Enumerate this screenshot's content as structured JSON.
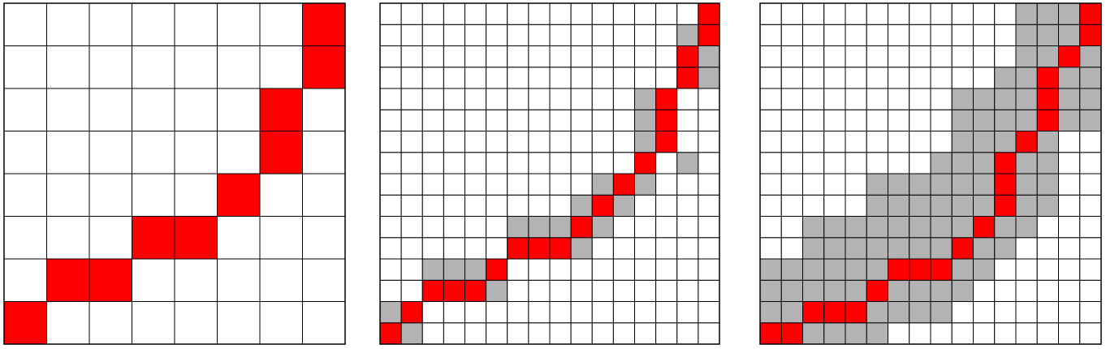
{
  "colors": {
    "path": "#ff0000",
    "window": "#b3b3b3",
    "empty": "#ffffff",
    "grid": "#000000"
  },
  "panels": [
    {
      "size": 8,
      "path": [
        [
          0,
          0
        ],
        [
          1,
          1
        ],
        [
          2,
          1
        ],
        [
          3,
          2
        ],
        [
          4,
          2
        ],
        [
          5,
          3
        ],
        [
          6,
          4
        ],
        [
          6,
          5
        ],
        [
          7,
          6
        ],
        [
          7,
          7
        ]
      ],
      "window": []
    },
    {
      "size": 16,
      "path": [
        [
          0,
          0
        ],
        [
          1,
          1
        ],
        [
          2,
          2
        ],
        [
          3,
          2
        ],
        [
          4,
          2
        ],
        [
          5,
          3
        ],
        [
          6,
          4
        ],
        [
          7,
          4
        ],
        [
          8,
          4
        ],
        [
          9,
          5
        ],
        [
          10,
          6
        ],
        [
          11,
          7
        ],
        [
          12,
          8
        ],
        [
          13,
          9
        ],
        [
          13,
          10
        ],
        [
          13,
          11
        ],
        [
          14,
          12
        ],
        [
          14,
          13
        ],
        [
          15,
          14
        ],
        [
          15,
          15
        ]
      ],
      "window": [
        [
          0,
          1
        ],
        [
          1,
          0
        ],
        [
          2,
          3
        ],
        [
          3,
          3
        ],
        [
          4,
          3
        ],
        [
          5,
          2
        ],
        [
          6,
          5
        ],
        [
          7,
          5
        ],
        [
          8,
          5
        ],
        [
          9,
          4
        ],
        [
          9,
          6
        ],
        [
          10,
          5
        ],
        [
          10,
          7
        ],
        [
          11,
          6
        ],
        [
          12,
          7
        ],
        [
          12,
          9
        ],
        [
          12,
          10
        ],
        [
          12,
          11
        ],
        [
          14,
          8
        ],
        [
          14,
          14
        ],
        [
          15,
          12
        ],
        [
          15,
          13
        ]
      ]
    },
    {
      "size": 16,
      "path": [
        [
          0,
          0
        ],
        [
          1,
          0
        ],
        [
          2,
          1
        ],
        [
          3,
          1
        ],
        [
          4,
          1
        ],
        [
          5,
          2
        ],
        [
          6,
          3
        ],
        [
          7,
          3
        ],
        [
          8,
          3
        ],
        [
          9,
          4
        ],
        [
          10,
          5
        ],
        [
          11,
          6
        ],
        [
          11,
          7
        ],
        [
          11,
          8
        ],
        [
          12,
          9
        ],
        [
          13,
          10
        ],
        [
          13,
          11
        ],
        [
          13,
          12
        ],
        [
          14,
          13
        ],
        [
          15,
          14
        ],
        [
          15,
          15
        ]
      ],
      "window": [
        [
          0,
          1
        ],
        [
          0,
          2
        ],
        [
          0,
          3
        ],
        [
          1,
          1
        ],
        [
          1,
          2
        ],
        [
          1,
          3
        ],
        [
          2,
          0
        ],
        [
          2,
          2
        ],
        [
          2,
          3
        ],
        [
          2,
          4
        ],
        [
          2,
          5
        ],
        [
          3,
          0
        ],
        [
          3,
          2
        ],
        [
          3,
          3
        ],
        [
          3,
          4
        ],
        [
          3,
          5
        ],
        [
          4,
          0
        ],
        [
          4,
          2
        ],
        [
          4,
          3
        ],
        [
          4,
          4
        ],
        [
          4,
          5
        ],
        [
          5,
          0
        ],
        [
          5,
          1
        ],
        [
          5,
          3
        ],
        [
          5,
          4
        ],
        [
          5,
          5
        ],
        [
          5,
          6
        ],
        [
          5,
          7
        ],
        [
          6,
          1
        ],
        [
          6,
          2
        ],
        [
          6,
          4
        ],
        [
          6,
          5
        ],
        [
          6,
          6
        ],
        [
          6,
          7
        ],
        [
          7,
          1
        ],
        [
          7,
          2
        ],
        [
          7,
          4
        ],
        [
          7,
          5
        ],
        [
          7,
          6
        ],
        [
          7,
          7
        ],
        [
          8,
          1
        ],
        [
          8,
          2
        ],
        [
          8,
          4
        ],
        [
          8,
          5
        ],
        [
          8,
          6
        ],
        [
          8,
          7
        ],
        [
          8,
          8
        ],
        [
          9,
          2
        ],
        [
          9,
          3
        ],
        [
          9,
          5
        ],
        [
          9,
          6
        ],
        [
          9,
          7
        ],
        [
          9,
          8
        ],
        [
          9,
          9
        ],
        [
          9,
          10
        ],
        [
          9,
          11
        ],
        [
          10,
          3
        ],
        [
          10,
          4
        ],
        [
          10,
          6
        ],
        [
          10,
          7
        ],
        [
          10,
          8
        ],
        [
          10,
          9
        ],
        [
          10,
          10
        ],
        [
          10,
          11
        ],
        [
          11,
          4
        ],
        [
          11,
          5
        ],
        [
          11,
          9
        ],
        [
          11,
          10
        ],
        [
          11,
          11
        ],
        [
          11,
          12
        ],
        [
          12,
          5
        ],
        [
          12,
          6
        ],
        [
          12,
          7
        ],
        [
          12,
          8
        ],
        [
          12,
          10
        ],
        [
          12,
          11
        ],
        [
          12,
          12
        ],
        [
          12,
          13
        ],
        [
          12,
          14
        ],
        [
          12,
          15
        ],
        [
          13,
          6
        ],
        [
          13,
          7
        ],
        [
          13,
          8
        ],
        [
          13,
          9
        ],
        [
          13,
          13
        ],
        [
          13,
          14
        ],
        [
          13,
          15
        ],
        [
          14,
          10
        ],
        [
          14,
          11
        ],
        [
          14,
          12
        ],
        [
          14,
          14
        ],
        [
          14,
          15
        ],
        [
          15,
          10
        ],
        [
          15,
          11
        ],
        [
          15,
          12
        ],
        [
          15,
          13
        ]
      ]
    }
  ]
}
